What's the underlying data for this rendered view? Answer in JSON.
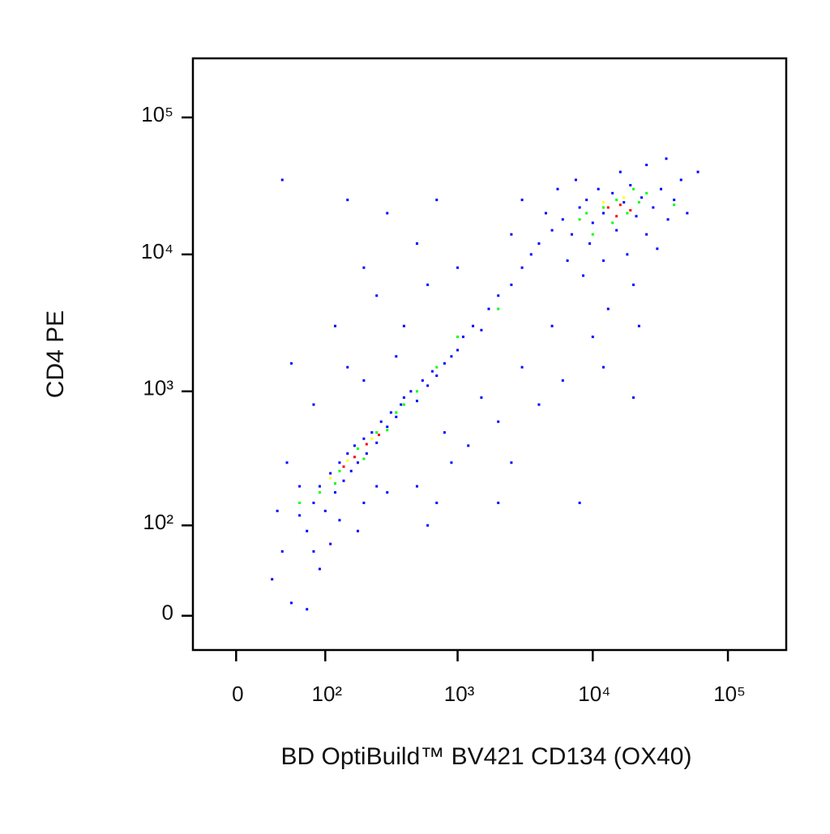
{
  "chart_data": {
    "type": "scatter",
    "xlabel": "BD OptiBuild™ BV421 CD134 (OX40)",
    "ylabel": "CD4 PE",
    "xscale": "logicle",
    "yscale": "logicle",
    "xlim": [
      -37,
      270000
    ],
    "ylim": [
      -28,
      270000
    ],
    "xticks": [
      0,
      {
        "value": 100,
        "label": "10²"
      },
      {
        "value": 1000,
        "label": "10³"
      },
      {
        "value": 10000,
        "label": "10⁴"
      },
      {
        "value": 100000,
        "label": "10⁵"
      }
    ],
    "yticks": [
      0,
      {
        "value": 100,
        "label": "10²"
      },
      {
        "value": 1000,
        "label": "10³"
      },
      {
        "value": 10000,
        "label": "10⁴"
      },
      {
        "value": 100000,
        "label": "10⁵"
      }
    ],
    "series": [
      {
        "color": "#0000ff",
        "x": [
          60,
          70,
          80,
          90,
          100,
          110,
          120,
          130,
          140,
          150,
          160,
          170,
          180,
          200,
          210,
          230,
          250,
          270,
          300,
          320,
          350,
          380,
          400,
          450,
          500,
          550,
          600,
          650,
          700,
          800,
          900,
          1000,
          1100,
          1300,
          1500,
          1700,
          2000,
          2500,
          3000,
          3500,
          4000,
          5000,
          6000,
          7000,
          8000,
          9000,
          10000,
          11000,
          12000,
          14000,
          15000,
          17000,
          19000,
          21000,
          23000,
          25000,
          28000,
          32000,
          36000,
          40000,
          45000,
          50000,
          60000,
          5500,
          4500,
          6500,
          8500,
          12000,
          18000,
          30000,
          7500,
          16000,
          25000,
          35000,
          3000,
          2500,
          9500,
          20000,
          13000,
          10000,
          22000,
          5000,
          3000,
          4000,
          6000,
          2000,
          1500,
          1200,
          900,
          700,
          600,
          500,
          800,
          2500,
          8000,
          12000,
          20000,
          2000,
          40,
          150,
          200,
          120,
          300,
          500,
          250,
          400,
          600,
          150,
          80,
          50,
          700,
          200,
          350,
          1000,
          30,
          50,
          70,
          40,
          90,
          110,
          60,
          45,
          35,
          80,
          130,
          200,
          250,
          300,
          180
        ],
        "y": [
          120,
          90,
          150,
          200,
          130,
          250,
          180,
          300,
          220,
          350,
          260,
          400,
          300,
          450,
          350,
          500,
          420,
          600,
          550,
          700,
          650,
          800,
          900,
          1000,
          850,
          1200,
          1100,
          1400,
          1300,
          1600,
          1800,
          2000,
          2500,
          3000,
          2800,
          4000,
          5000,
          6000,
          8000,
          10000,
          12000,
          15000,
          18000,
          14000,
          22000,
          25000,
          17000,
          30000,
          20000,
          28000,
          15000,
          24000,
          32000,
          19000,
          26000,
          14000,
          22000,
          30000,
          18000,
          25000,
          35000,
          20000,
          40000,
          30000,
          20000,
          9000,
          7000,
          9000,
          10000,
          11000,
          35000,
          40000,
          45000,
          50000,
          25000,
          14000,
          12000,
          6000,
          4000,
          2500,
          3000,
          3000,
          1500,
          800,
          1200,
          600,
          900,
          400,
          300,
          150,
          100,
          200,
          500,
          300,
          150,
          1500,
          900,
          150,
          35000,
          25000,
          8000,
          3000,
          20000,
          12000,
          5000,
          3000,
          6000,
          1500,
          800,
          1600,
          25000,
          1200,
          1800,
          8000,
          30,
          10,
          5,
          60,
          40,
          70,
          200,
          300,
          130,
          60,
          110,
          150,
          200,
          180,
          90
        ]
      },
      {
        "color": "#00ff00",
        "x": [
          90,
          130,
          180,
          250,
          350,
          500,
          700,
          1000,
          120,
          200,
          300,
          8000,
          12000,
          15000,
          18000,
          22000,
          10000,
          25000,
          14000,
          20000,
          9000,
          40000,
          60,
          400,
          2000
        ],
        "y": [
          180,
          260,
          380,
          500,
          700,
          1000,
          1500,
          2500,
          210,
          320,
          520,
          18000,
          22000,
          25000,
          20000,
          24000,
          14000,
          28000,
          17000,
          30000,
          20000,
          23000,
          150,
          800,
          4000
        ]
      },
      {
        "color": "#ff0000",
        "x": [
          140,
          170,
          210,
          260,
          13000,
          16000,
          19000,
          15000
        ],
        "y": [
          280,
          330,
          410,
          480,
          22000,
          23000,
          21000,
          19000
        ]
      },
      {
        "color": "#ffff00",
        "x": [
          110,
          230,
          150,
          17000,
          12000
        ],
        "y": [
          230,
          450,
          310,
          26000,
          24000
        ]
      }
    ]
  }
}
